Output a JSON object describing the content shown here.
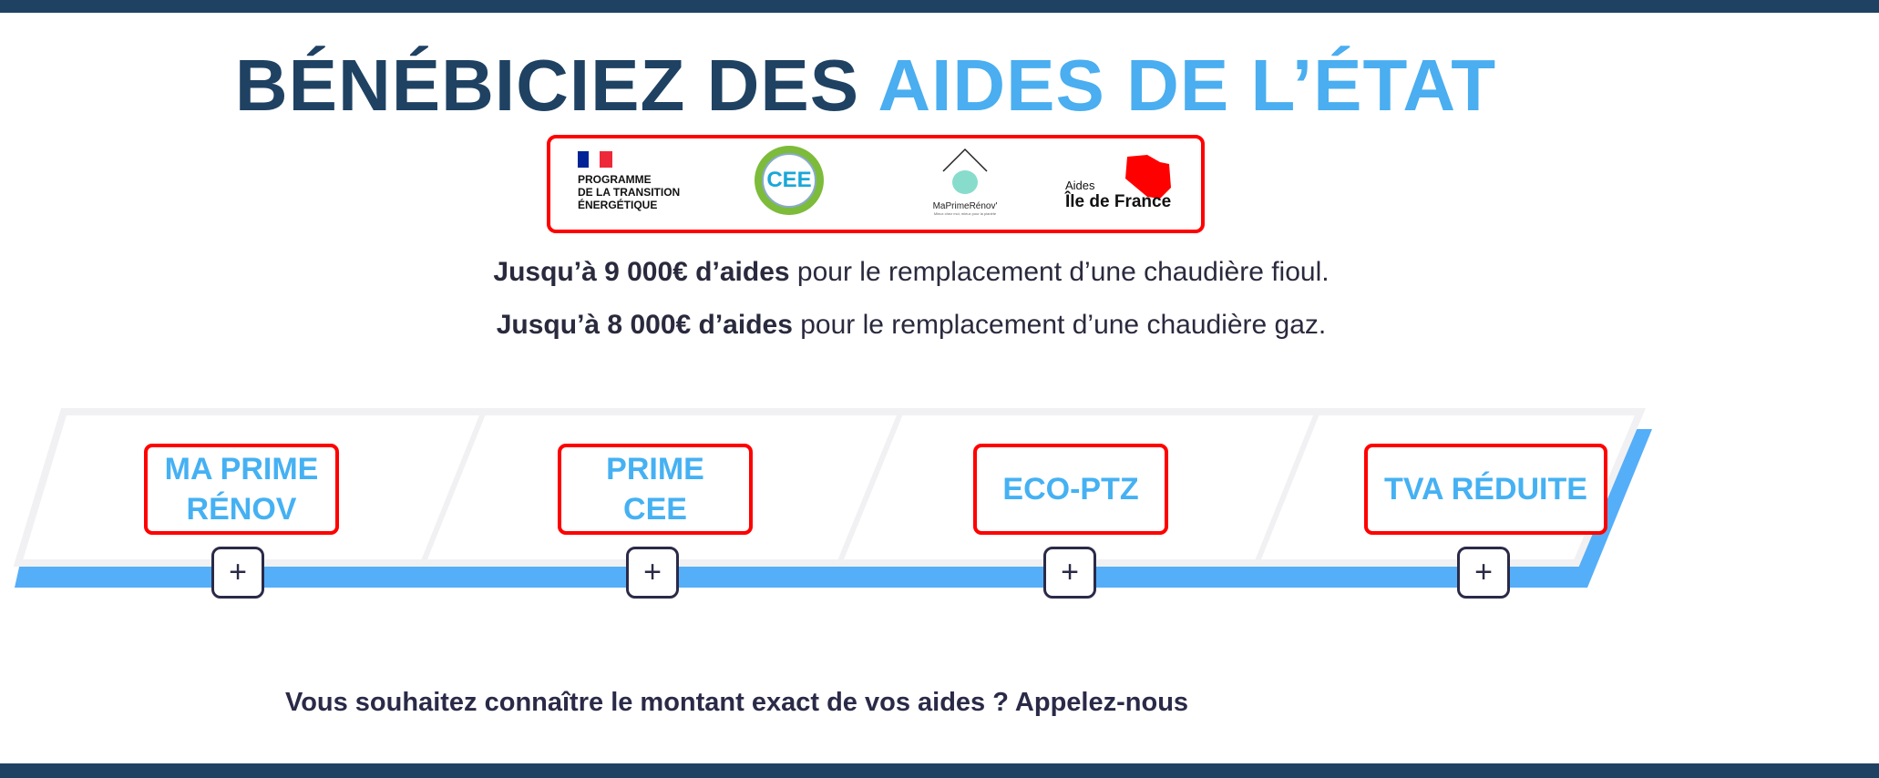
{
  "title": {
    "part1": "BÉNÉBICIEZ DES ",
    "part2": "AIDES DE L’ÉTAT"
  },
  "logos": [
    {
      "name": "programme-transition-energetique",
      "text": "PROGRAMME\nDE LA TRANSITION\nÉNERGÉTIQUE"
    },
    {
      "name": "cee",
      "text": "CEE"
    },
    {
      "name": "maprimerenov",
      "text": "MaPrimeRénov'",
      "tagline": "Mieux chez moi, mieux pour la planète"
    },
    {
      "name": "aides-ile-de-france",
      "small": "Aides",
      "big": "Île de France"
    }
  ],
  "lines": [
    {
      "bold": "Jusqu’à 9 000€ d’aides",
      "rest": " pour le remplacement d’une chaudière fioul."
    },
    {
      "bold": "Jusqu’à 8 000€ d’aides",
      "rest": " pour le remplacement d’une chaudière gaz."
    }
  ],
  "aids": [
    {
      "label": "MA PRIME RÉNOV",
      "expand": "+"
    },
    {
      "label": "PRIME CEE",
      "expand": "+"
    },
    {
      "label": "ECO-PTZ",
      "expand": "+"
    },
    {
      "label": "TVA RÉDUITE",
      "expand": "+"
    }
  ],
  "cta": "Vous souhaitez connaître le montant exact de vos aides ? Appelez-nous",
  "colors": {
    "navy": "#1f4263",
    "accent": "#4aaef0",
    "highlight": "#ff0000",
    "band": "#55aef8"
  }
}
